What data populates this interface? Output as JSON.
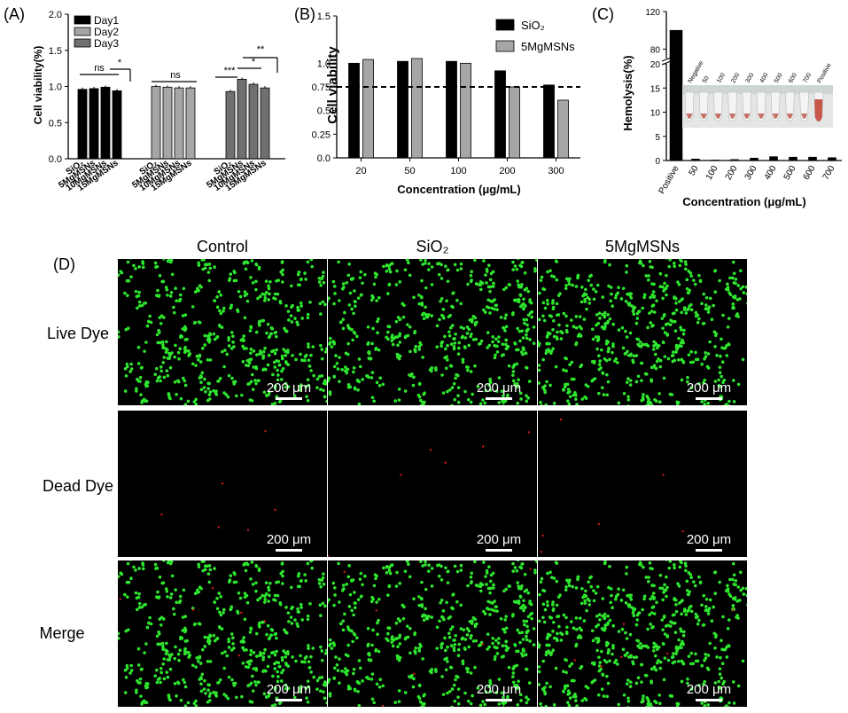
{
  "panel_a": {
    "letter": "(A)"
  },
  "panel_b": {
    "letter": "(B)"
  },
  "panel_c": {
    "letter": "(C)",
    "tube_labels": [
      "Negative",
      "50",
      "100",
      "200",
      "300",
      "400",
      "500",
      "600",
      "700",
      "Positive"
    ]
  },
  "panel_d": {
    "letter": "(D)",
    "columns": [
      "Control",
      "SiO₂",
      "5MgMSNs"
    ],
    "rows": [
      "Live Dye",
      "Dead Dye",
      "Merge"
    ],
    "scale_bar": "200 μm"
  },
  "chart_data": [
    {
      "type": "bar",
      "ylabel": "Cell viability(%)",
      "ylim": [
        0,
        2.0
      ],
      "yticks": [
        "0.0",
        "0.5",
        "1.0",
        "1.5",
        "2.0"
      ],
      "groups": [
        "Day1",
        "Day2",
        "Day3"
      ],
      "categories": [
        "SiO₂",
        "5MgMSNs",
        "10MgMSNs",
        "15MgMSNs"
      ],
      "series": [
        {
          "name": "Day1",
          "color": "#000000",
          "values": [
            0.96,
            0.97,
            0.99,
            0.94
          ]
        },
        {
          "name": "Day2",
          "color": "#a6a6a6",
          "values": [
            1.0,
            0.99,
            0.98,
            0.98
          ]
        },
        {
          "name": "Day3",
          "color": "#707070",
          "values": [
            0.93,
            1.1,
            1.03,
            0.98
          ]
        }
      ],
      "significance": [
        {
          "group": "Day1",
          "label": "ns"
        },
        {
          "group": "Day1",
          "label": "*"
        },
        {
          "group": "Day2",
          "label": "ns"
        },
        {
          "group": "Day3",
          "label": "***"
        },
        {
          "group": "Day3",
          "label": "*"
        },
        {
          "group": "Day3",
          "label": "**"
        }
      ],
      "legend": "top-left"
    },
    {
      "type": "bar",
      "xlabel": "Concentration (μg/mL)",
      "ylabel": "Cell viability",
      "ylim": [
        0,
        1.5
      ],
      "yticks": [
        "0.0",
        "0.25",
        "0.5",
        "0.75",
        "1.0",
        "1.5"
      ],
      "categories": [
        "20",
        "50",
        "100",
        "200",
        "300"
      ],
      "series": [
        {
          "name": "SiO₂",
          "color": "#000000",
          "values": [
            1.0,
            1.02,
            1.02,
            0.92,
            0.77
          ]
        },
        {
          "name": "5MgMSNs",
          "color": "#a6a6a6",
          "values": [
            1.04,
            1.05,
            1.0,
            0.75,
            0.61
          ]
        }
      ],
      "reference_line": 0.75,
      "legend": "top-right"
    },
    {
      "type": "bar",
      "xlabel": "Concentration (μg/mL)",
      "ylabel": "Hemolysis(%)",
      "yticks": [
        "0",
        "5",
        "10",
        "15",
        "20",
        "80",
        "120"
      ],
      "axis_break": [
        20,
        70
      ],
      "categories": [
        "Positive",
        "50",
        "100",
        "200",
        "300",
        "400",
        "500",
        "600",
        "700"
      ],
      "values": [
        100,
        0.3,
        0.1,
        0.2,
        0.5,
        0.8,
        0.7,
        0.7,
        0.6
      ]
    }
  ]
}
